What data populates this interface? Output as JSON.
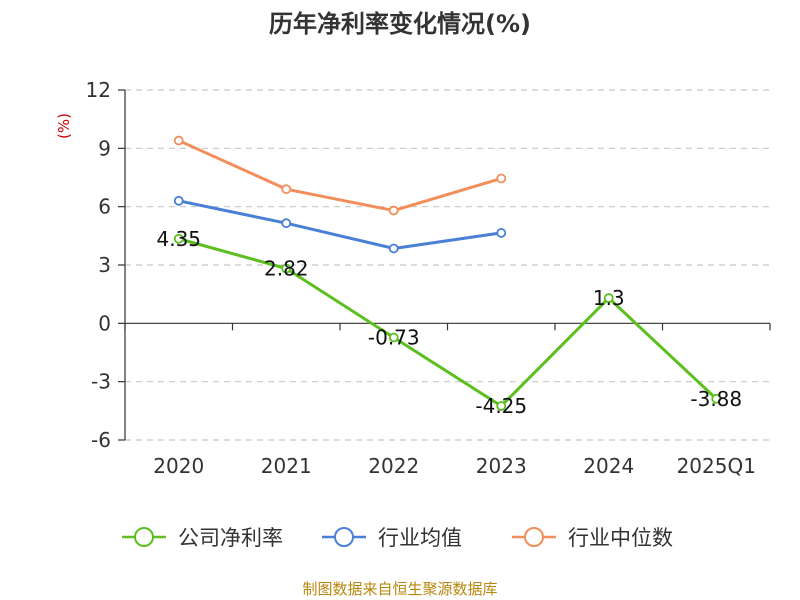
{
  "chart_data": {
    "type": "line",
    "title": "历年净利率变化情况(%)",
    "ylabel": "(%)",
    "categories": [
      "2020",
      "2021",
      "2022",
      "2023",
      "2024",
      "2025Q1"
    ],
    "ylim": [
      -6,
      12
    ],
    "yticks": [
      "12",
      "9",
      "6",
      "3",
      "0",
      "-3",
      "-6"
    ],
    "grid": true,
    "legend_position": "bottom",
    "series": [
      {
        "name": "公司净利率",
        "color": "#5cbf1f",
        "values": [
          4.35,
          2.82,
          -0.73,
          -4.25,
          1.3,
          -3.88
        ],
        "labels": [
          "4.35",
          "2.82",
          "-0.73",
          "-4.25",
          "1.3",
          "-3.88"
        ]
      },
      {
        "name": "行业均值",
        "color": "#4a7fd6",
        "values": [
          6.3,
          5.15,
          3.85,
          4.65,
          null,
          null
        ]
      },
      {
        "name": "行业中位数",
        "color": "#f28e5a",
        "values": [
          9.4,
          6.9,
          5.8,
          7.45,
          null,
          null
        ]
      }
    ]
  },
  "source": "制图数据来自恒生聚源数据库"
}
